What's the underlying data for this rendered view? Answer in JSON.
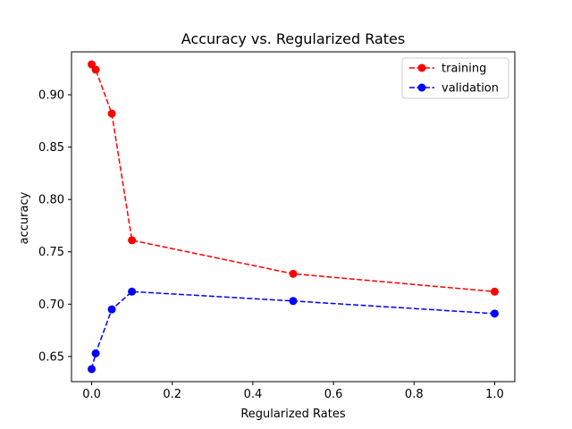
{
  "chart_data": {
    "type": "line",
    "title": "Accuracy vs. Regularized Rates",
    "xlabel": "Regularized Rates",
    "ylabel": "accuracy",
    "xlim": [
      -0.05,
      1.05
    ],
    "ylim": [
      0.626,
      0.941
    ],
    "xticks": [
      0.0,
      0.2,
      0.4,
      0.6,
      0.8,
      1.0
    ],
    "xtick_labels": [
      "0.0",
      "0.2",
      "0.4",
      "0.6",
      "0.8",
      "1.0"
    ],
    "yticks": [
      0.65,
      0.7,
      0.75,
      0.8,
      0.85,
      0.9
    ],
    "ytick_labels": [
      "0.65",
      "0.70",
      "0.75",
      "0.80",
      "0.85",
      "0.90"
    ],
    "grid": false,
    "legend_position": "top-right",
    "x": [
      0.0,
      0.01,
      0.05,
      0.1,
      0.5,
      1.0
    ],
    "series": [
      {
        "name": "training",
        "color": "#ff0000",
        "line_style": "dashed",
        "marker": "circle",
        "values": [
          0.929,
          0.924,
          0.882,
          0.761,
          0.729,
          0.712
        ]
      },
      {
        "name": "validation",
        "color": "#0000ff",
        "line_style": "dashed",
        "marker": "circle",
        "values": [
          0.638,
          0.653,
          0.695,
          0.712,
          0.703,
          0.691
        ]
      }
    ]
  }
}
